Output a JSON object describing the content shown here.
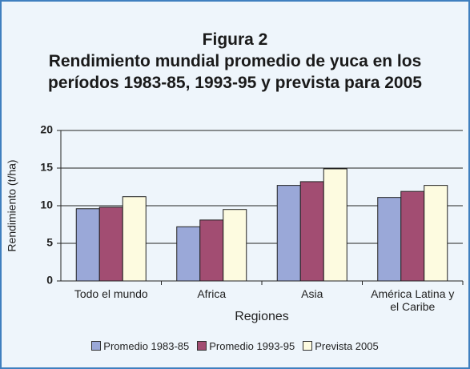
{
  "chart_data": {
    "type": "bar",
    "title": "Figura 2",
    "subtitle": "Rendimiento mundial promedio de yuca en los períodos 1983-85, 1993-95 y prevista para 2005",
    "categories": [
      "Todo el mundo",
      "Africa",
      "Asia",
      "América Latina y el Caribe"
    ],
    "series": [
      {
        "name": "Promedio 1983-85",
        "color": "#9aa8d8",
        "values": [
          9.6,
          7.2,
          12.7,
          11.1
        ]
      },
      {
        "name": "Promedio 1993-95",
        "color": "#a24d72",
        "values": [
          9.8,
          8.1,
          13.2,
          11.9
        ]
      },
      {
        "name": "Prevista 2005",
        "color": "#fdfbe0",
        "values": [
          11.2,
          9.5,
          14.9,
          12.7
        ]
      }
    ],
    "xlabel": "Regiones",
    "ylabel": "Rendimiento (t/ha)",
    "ylim": [
      0,
      20
    ],
    "yticks": [
      0,
      5,
      10,
      15,
      20
    ],
    "grid": true,
    "legend": "bottom"
  }
}
